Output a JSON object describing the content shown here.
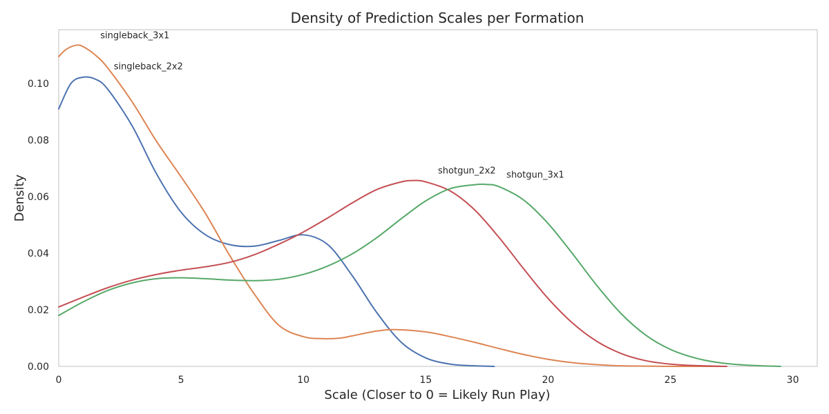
{
  "chart_data": {
    "type": "line",
    "title": "Density of Prediction Scales per Formation",
    "xlabel": "Scale (Closer to 0 = Likely Run Play)",
    "ylabel": "Density",
    "xlim": [
      0,
      31
    ],
    "ylim": [
      0,
      0.119
    ],
    "xticks": [
      0,
      5,
      10,
      15,
      20,
      25,
      30
    ],
    "yticks": [
      0.0,
      0.02,
      0.04,
      0.06,
      0.08,
      0.1
    ],
    "ytick_labels": [
      "0.00",
      "0.02",
      "0.04",
      "0.06",
      "0.08",
      "0.10"
    ],
    "grid": false,
    "series": [
      {
        "name": "singleback_2x2",
        "color": "#4c72b0",
        "x": [
          0,
          0.5,
          1,
          1.5,
          2,
          3,
          4,
          5,
          6,
          7,
          8,
          9,
          10,
          11,
          12,
          13,
          14,
          15,
          16,
          17,
          17.8
        ],
        "y": [
          0.091,
          0.1,
          0.1022,
          0.1015,
          0.098,
          0.085,
          0.068,
          0.0545,
          0.0465,
          0.043,
          0.0425,
          0.0445,
          0.0465,
          0.043,
          0.032,
          0.019,
          0.0085,
          0.003,
          0.0008,
          0.0002,
          0.0
        ]
      },
      {
        "name": "singleback_3x1",
        "color": "#dd8452",
        "x": [
          0,
          0.3,
          0.7,
          1,
          1.5,
          2,
          3,
          4,
          5,
          6,
          7,
          8,
          9,
          10,
          10.8,
          11.5,
          12,
          13,
          13.8,
          15,
          16,
          17,
          18,
          19,
          20,
          21,
          22,
          23,
          24,
          25,
          26,
          27.3
        ],
        "y": [
          0.1095,
          0.112,
          0.1135,
          0.113,
          0.11,
          0.1055,
          0.0935,
          0.0795,
          0.067,
          0.054,
          0.039,
          0.0255,
          0.0145,
          0.0105,
          0.0098,
          0.01,
          0.0108,
          0.0125,
          0.013,
          0.0122,
          0.0105,
          0.0085,
          0.0063,
          0.0042,
          0.0025,
          0.0013,
          0.0006,
          0.0002,
          0.0001,
          0.0,
          0.0,
          0.0
        ]
      },
      {
        "name": "shotgun_2x2",
        "color": "#c44e52",
        "x": [
          0,
          1,
          2,
          3,
          4,
          5,
          6,
          7,
          8,
          9,
          10,
          11,
          12,
          13,
          14,
          14.5,
          15,
          16,
          17,
          18,
          19,
          20,
          21,
          22,
          23,
          24,
          25,
          26,
          27.3
        ],
        "y": [
          0.021,
          0.0245,
          0.0278,
          0.0305,
          0.0325,
          0.034,
          0.0352,
          0.0368,
          0.0395,
          0.0432,
          0.0475,
          0.0525,
          0.0578,
          0.0625,
          0.0652,
          0.0657,
          0.0652,
          0.062,
          0.0553,
          0.0455,
          0.0345,
          0.024,
          0.0153,
          0.0088,
          0.0045,
          0.002,
          0.0008,
          0.0003,
          0.0
        ]
      },
      {
        "name": "shotgun_3x1",
        "color": "#55a868",
        "x": [
          0,
          1,
          2,
          3,
          4,
          5,
          6,
          7,
          8,
          9,
          10,
          11,
          12,
          13,
          14,
          15,
          16,
          17,
          17.5,
          18,
          19,
          20,
          21,
          22,
          23,
          24,
          25,
          26,
          27,
          28,
          29.5
        ],
        "y": [
          0.018,
          0.0228,
          0.0268,
          0.0295,
          0.031,
          0.0313,
          0.031,
          0.0305,
          0.0303,
          0.0308,
          0.0325,
          0.0355,
          0.0398,
          0.0455,
          0.0522,
          0.0585,
          0.0628,
          0.0642,
          0.0643,
          0.0635,
          0.0588,
          0.0505,
          0.0398,
          0.0285,
          0.0185,
          0.011,
          0.006,
          0.003,
          0.0013,
          0.0005,
          0.0
        ]
      }
    ],
    "annotations": [
      {
        "text": "singleback_3x1",
        "x": 1.7,
        "y": 0.1135
      },
      {
        "text": "singleback_2x2",
        "x": 2.25,
        "y": 0.1025
      },
      {
        "text": "shotgun_2x2",
        "x": 15.5,
        "y": 0.0657
      },
      {
        "text": "shotgun_3x1",
        "x": 18.3,
        "y": 0.0643
      }
    ]
  }
}
